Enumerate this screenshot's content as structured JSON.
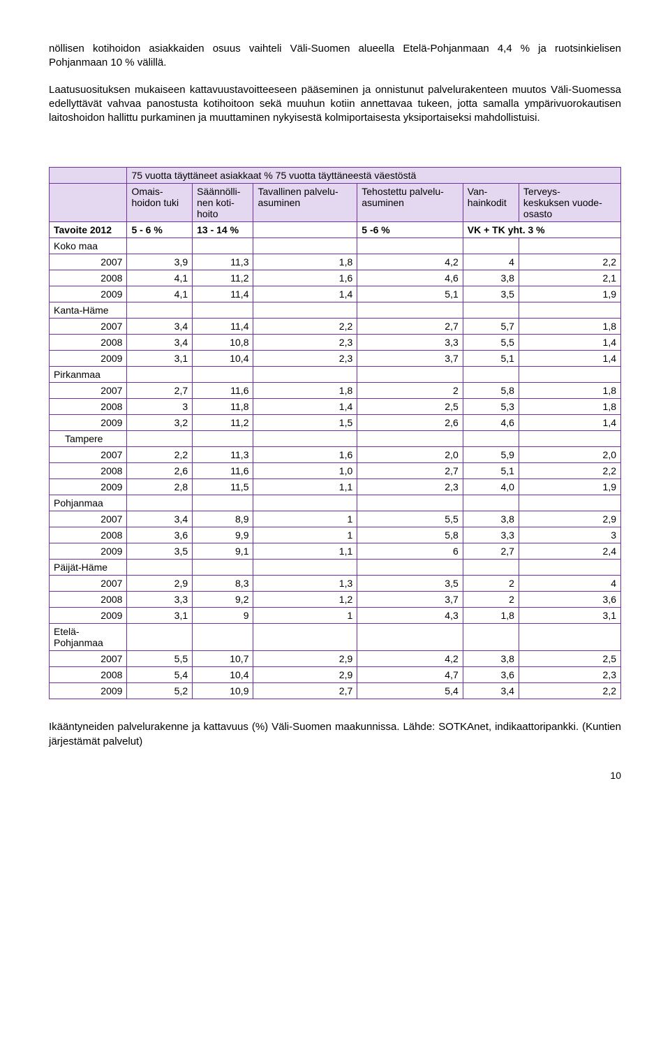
{
  "paragraphs": {
    "p1": "nöllisen kotihoidon asiakkaiden osuus vaihteli Väli-Suomen alueella Etelä-Pohjanmaan 4,4 % ja ruotsinkielisen Pohjanmaan 10 % välillä.",
    "p2": "Laatusuosituksen mukaiseen kattavuustavoitteeseen pääseminen ja onnistunut palvelurakenteen muutos Väli-Suomessa edellyttävät vahvaa panostusta kotihoitoon sekä muuhun kotiin annettavaa tukeen, jotta samalla ympärivuorokautisen laitoshoidon hallittu purkaminen ja muuttaminen nykyisestä kolmiportaisesta yksiportaiseksi mahdollistuisi."
  },
  "table": {
    "title": "75 vuotta täyttäneet asiakkaat % 75 vuotta täyttäneestä väestöstä",
    "headers": [
      "",
      "Omais-hoidon tuki",
      "Säännölli-nen koti-hoito",
      "Tavallinen palvelu-asuminen",
      "Tehostettu palvelu-asuminen",
      "Van-hainkodit",
      "Terveys-keskuksen vuode-osasto"
    ],
    "tavoite_label": "Tavoite 2012",
    "tavoite_cells": [
      "5 - 6 %",
      "13 - 14 %",
      "",
      "5 -6 %",
      "VK + TK yht. 3 %"
    ],
    "sections": [
      {
        "name": "Koko maa",
        "rows": [
          [
            "2007",
            "3,9",
            "11,3",
            "1,8",
            "4,2",
            "4",
            "2,2"
          ],
          [
            "2008",
            "4,1",
            "11,2",
            "1,6",
            "4,6",
            "3,8",
            "2,1"
          ],
          [
            "2009",
            "4,1",
            "11,4",
            "1,4",
            "5,1",
            "3,5",
            "1,9"
          ]
        ]
      },
      {
        "name": "Kanta-Häme",
        "rows": [
          [
            "2007",
            "3,4",
            "11,4",
            "2,2",
            "2,7",
            "5,7",
            "1,8"
          ],
          [
            "2008",
            "3,4",
            "10,8",
            "2,3",
            "3,3",
            "5,5",
            "1,4"
          ],
          [
            "2009",
            "3,1",
            "10,4",
            "2,3",
            "3,7",
            "5,1",
            "1,4"
          ]
        ]
      },
      {
        "name": "Pirkanmaa",
        "rows": [
          [
            "2007",
            "2,7",
            "11,6",
            "1,8",
            "2",
            "5,8",
            "1,8"
          ],
          [
            "2008",
            "3",
            "11,8",
            "1,4",
            "2,5",
            "5,3",
            "1,8"
          ],
          [
            "2009",
            "3,2",
            "11,2",
            "1,5",
            "2,6",
            "4,6",
            "1,4"
          ]
        ]
      },
      {
        "name": "Tampere",
        "indent": true,
        "rows": [
          [
            "2007",
            "2,2",
            "11,3",
            "1,6",
            "2,0",
            "5,9",
            "2,0"
          ],
          [
            "2008",
            "2,6",
            "11,6",
            "1,0",
            "2,7",
            "5,1",
            "2,2"
          ],
          [
            "2009",
            "2,8",
            "11,5",
            "1,1",
            "2,3",
            "4,0",
            "1,9"
          ]
        ]
      },
      {
        "name": "Pohjanmaa",
        "rows": [
          [
            "2007",
            "3,4",
            "8,9",
            "1",
            "5,5",
            "3,8",
            "2,9"
          ],
          [
            "2008",
            "3,6",
            "9,9",
            "1",
            "5,8",
            "3,3",
            "3"
          ],
          [
            "2009",
            "3,5",
            "9,1",
            "1,1",
            "6",
            "2,7",
            "2,4"
          ]
        ]
      },
      {
        "name": "Päijät-Häme",
        "rows": [
          [
            "2007",
            "2,9",
            "8,3",
            "1,3",
            "3,5",
            "2",
            "4"
          ],
          [
            "2008",
            "3,3",
            "9,2",
            "1,2",
            "3,7",
            "2",
            "3,6"
          ],
          [
            "2009",
            "3,1",
            "9",
            "1",
            "4,3",
            "1,8",
            "3,1"
          ]
        ]
      },
      {
        "name": "Etelä-Pohjanmaa",
        "rows": [
          [
            "2007",
            "5,5",
            "10,7",
            "2,9",
            "4,2",
            "3,8",
            "2,5"
          ],
          [
            "2008",
            "5,4",
            "10,4",
            "2,9",
            "4,7",
            "3,6",
            "2,3"
          ],
          [
            "2009",
            "5,2",
            "10,9",
            "2,7",
            "5,4",
            "3,4",
            "2,2"
          ]
        ]
      }
    ]
  },
  "caption": "Ikääntyneiden palvelurakenne ja kattavuus (%) Väli-Suomen maakunnissa. Lähde: SOTKAnet, indikaattoripankki. (Kuntien järjestämät palvelut)",
  "page_number": "10",
  "colors": {
    "border": "#7030a0",
    "header_bg": "#e4d8f0"
  }
}
